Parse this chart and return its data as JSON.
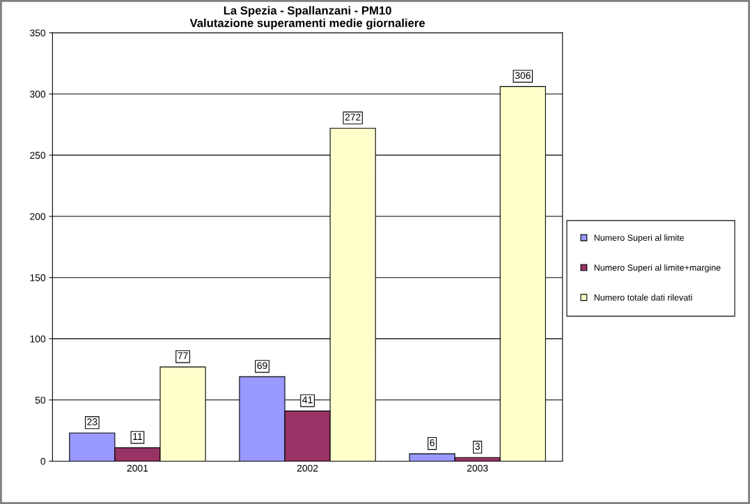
{
  "chart_data": {
    "type": "bar",
    "title": "La Spezia - Spallanzani - PM10\nValutazione superamenti medie giornaliere",
    "categories": [
      "2001",
      "2002",
      "2003"
    ],
    "series": [
      {
        "name": "Numero Superi al limite",
        "color": "#9999ff",
        "values": [
          23,
          69,
          6
        ]
      },
      {
        "name": "Numero Superi al limite+margine",
        "color": "#993366",
        "values": [
          11,
          41,
          3
        ]
      },
      {
        "name": "Numero totale dati rilevati",
        "color": "#ffffcc",
        "values": [
          77,
          272,
          306
        ]
      }
    ],
    "ylim": [
      0,
      350
    ],
    "yticks": [
      0,
      50,
      100,
      150,
      200,
      250,
      300,
      350
    ],
    "grid": "y",
    "legend": "right",
    "data_labels": true
  }
}
